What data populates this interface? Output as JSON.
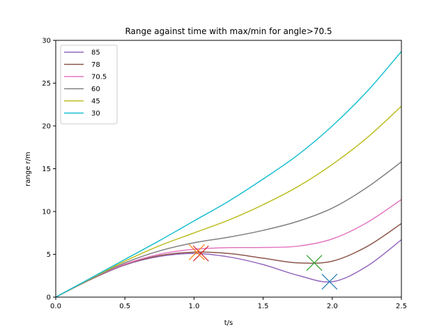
{
  "chart_data": {
    "type": "line",
    "title": "Range against time with max/min for angle>70.5",
    "xlabel": "t/s",
    "ylabel": "range r/m",
    "xlim": [
      0,
      2.5
    ],
    "ylim": [
      0,
      30
    ],
    "xticks": [
      "0.0",
      "0.5",
      "1.0",
      "1.5",
      "2.0",
      "2.5"
    ],
    "yticks": [
      "0",
      "5",
      "10",
      "15",
      "20",
      "25",
      "30"
    ],
    "grid": false,
    "legend_position": "top-left",
    "series": [
      {
        "name": "85",
        "color": "#9467bd",
        "x": [
          0,
          0.25,
          0.5,
          0.75,
          1.0,
          1.25,
          1.5,
          1.75,
          2.0,
          2.25,
          2.5
        ],
        "y": [
          0,
          2.05,
          3.75,
          4.75,
          5.1,
          4.7,
          3.8,
          2.55,
          1.8,
          3.6,
          6.7
        ]
      },
      {
        "name": "78",
        "color": "#8c564b",
        "x": [
          0,
          0.25,
          0.5,
          0.75,
          1.0,
          1.25,
          1.5,
          1.75,
          2.0,
          2.25,
          2.5
        ],
        "y": [
          0,
          2.05,
          3.8,
          4.85,
          5.25,
          5.1,
          4.55,
          4.0,
          4.2,
          5.9,
          8.6
        ]
      },
      {
        "name": "70.5",
        "color": "#e377c2",
        "x": [
          0,
          0.25,
          0.5,
          0.75,
          1.0,
          1.25,
          1.5,
          1.75,
          2.0,
          2.25,
          2.5
        ],
        "y": [
          0,
          2.1,
          3.85,
          5.0,
          5.6,
          5.78,
          5.8,
          5.95,
          6.8,
          8.7,
          11.4
        ]
      },
      {
        "name": "60",
        "color": "#7f7f7f",
        "x": [
          0,
          0.25,
          0.5,
          0.75,
          1.0,
          1.25,
          1.5,
          1.75,
          2.0,
          2.25,
          2.5
        ],
        "y": [
          0,
          2.1,
          4.0,
          5.4,
          6.35,
          7.0,
          7.8,
          8.85,
          10.4,
          12.8,
          15.8
        ]
      },
      {
        "name": "45",
        "color": "#bcbd22",
        "x": [
          0,
          0.25,
          0.5,
          0.75,
          1.0,
          1.25,
          1.5,
          1.75,
          2.0,
          2.25,
          2.5
        ],
        "y": [
          0,
          2.15,
          4.2,
          6.0,
          7.5,
          9.0,
          10.8,
          12.9,
          15.5,
          18.6,
          22.3
        ]
      },
      {
        "name": "30",
        "color": "#17becf",
        "x": [
          0,
          0.25,
          0.5,
          0.75,
          1.0,
          1.25,
          1.5,
          1.75,
          2.0,
          2.25,
          2.5
        ],
        "y": [
          0,
          2.2,
          4.4,
          6.6,
          8.9,
          11.2,
          13.8,
          16.6,
          20.0,
          24.0,
          28.7
        ]
      }
    ],
    "markers": [
      {
        "label": "max 85",
        "x": 1.05,
        "y": 5.1,
        "color": "#d62728"
      },
      {
        "label": "max 78",
        "x": 1.02,
        "y": 5.25,
        "color": "#ff7f0e"
      },
      {
        "label": "min 78",
        "x": 1.87,
        "y": 4.0,
        "color": "#2ca02c"
      },
      {
        "label": "min 85",
        "x": 1.98,
        "y": 1.8,
        "color": "#1f77b4"
      }
    ]
  }
}
